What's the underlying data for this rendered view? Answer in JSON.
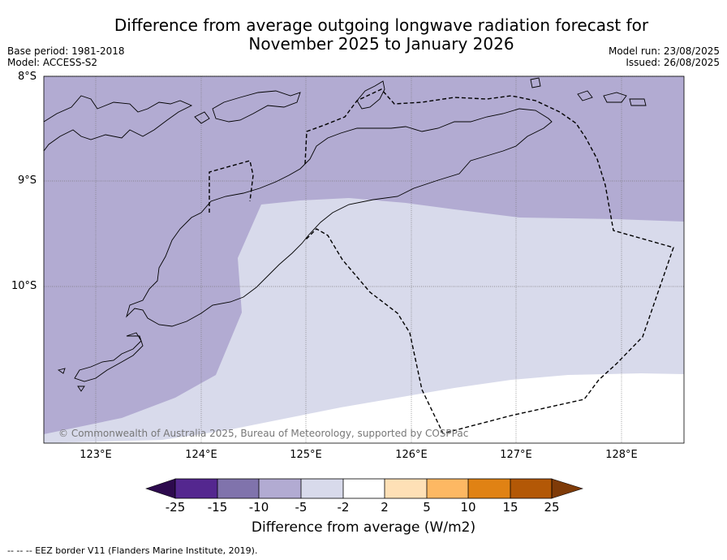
{
  "title_line1": "Difference from average outgoing longwave radiation forecast for",
  "title_line2": "November 2025 to January 2026",
  "meta_left": {
    "base_period": "Base period: 1981-2018",
    "model": "Model: ACCESS-S2"
  },
  "meta_right": {
    "model_run": "Model run: 23/08/2025",
    "issued": "Issued: 26/08/2025"
  },
  "latitude_labels": [
    "8°S",
    "9°S",
    "10°S"
  ],
  "longitude_labels": [
    "123°E",
    "124°E",
    "125°E",
    "126°E",
    "127°E",
    "128°E"
  ],
  "copyright": "© Commonwealth of Australia 2025, Bureau of Meteorology, supported by COSPPac",
  "colorbar": {
    "title": "Difference from average (W/m2)",
    "ticks": [
      "-25",
      "-15",
      "-10",
      "-5",
      "-2",
      "2",
      "5",
      "10",
      "15",
      "25"
    ],
    "colors": {
      "under": "#2d0a4e",
      "bin_-25_-15": "#54278f",
      "bin_-15_-10": "#8073ac",
      "bin_-10_-5": "#b2abd2",
      "bin_-5_-2": "#d8daeb",
      "bin_-2_2": "#ffffff",
      "bin_2_5": "#fee0b6",
      "bin_5_10": "#fdb863",
      "bin_10_15": "#e08214",
      "bin_15_25": "#b35806",
      "over": "#7f3b08"
    }
  },
  "footnote": "--  --  -- EEZ border V11 (Flanders Marine Institute, 2019)."
}
